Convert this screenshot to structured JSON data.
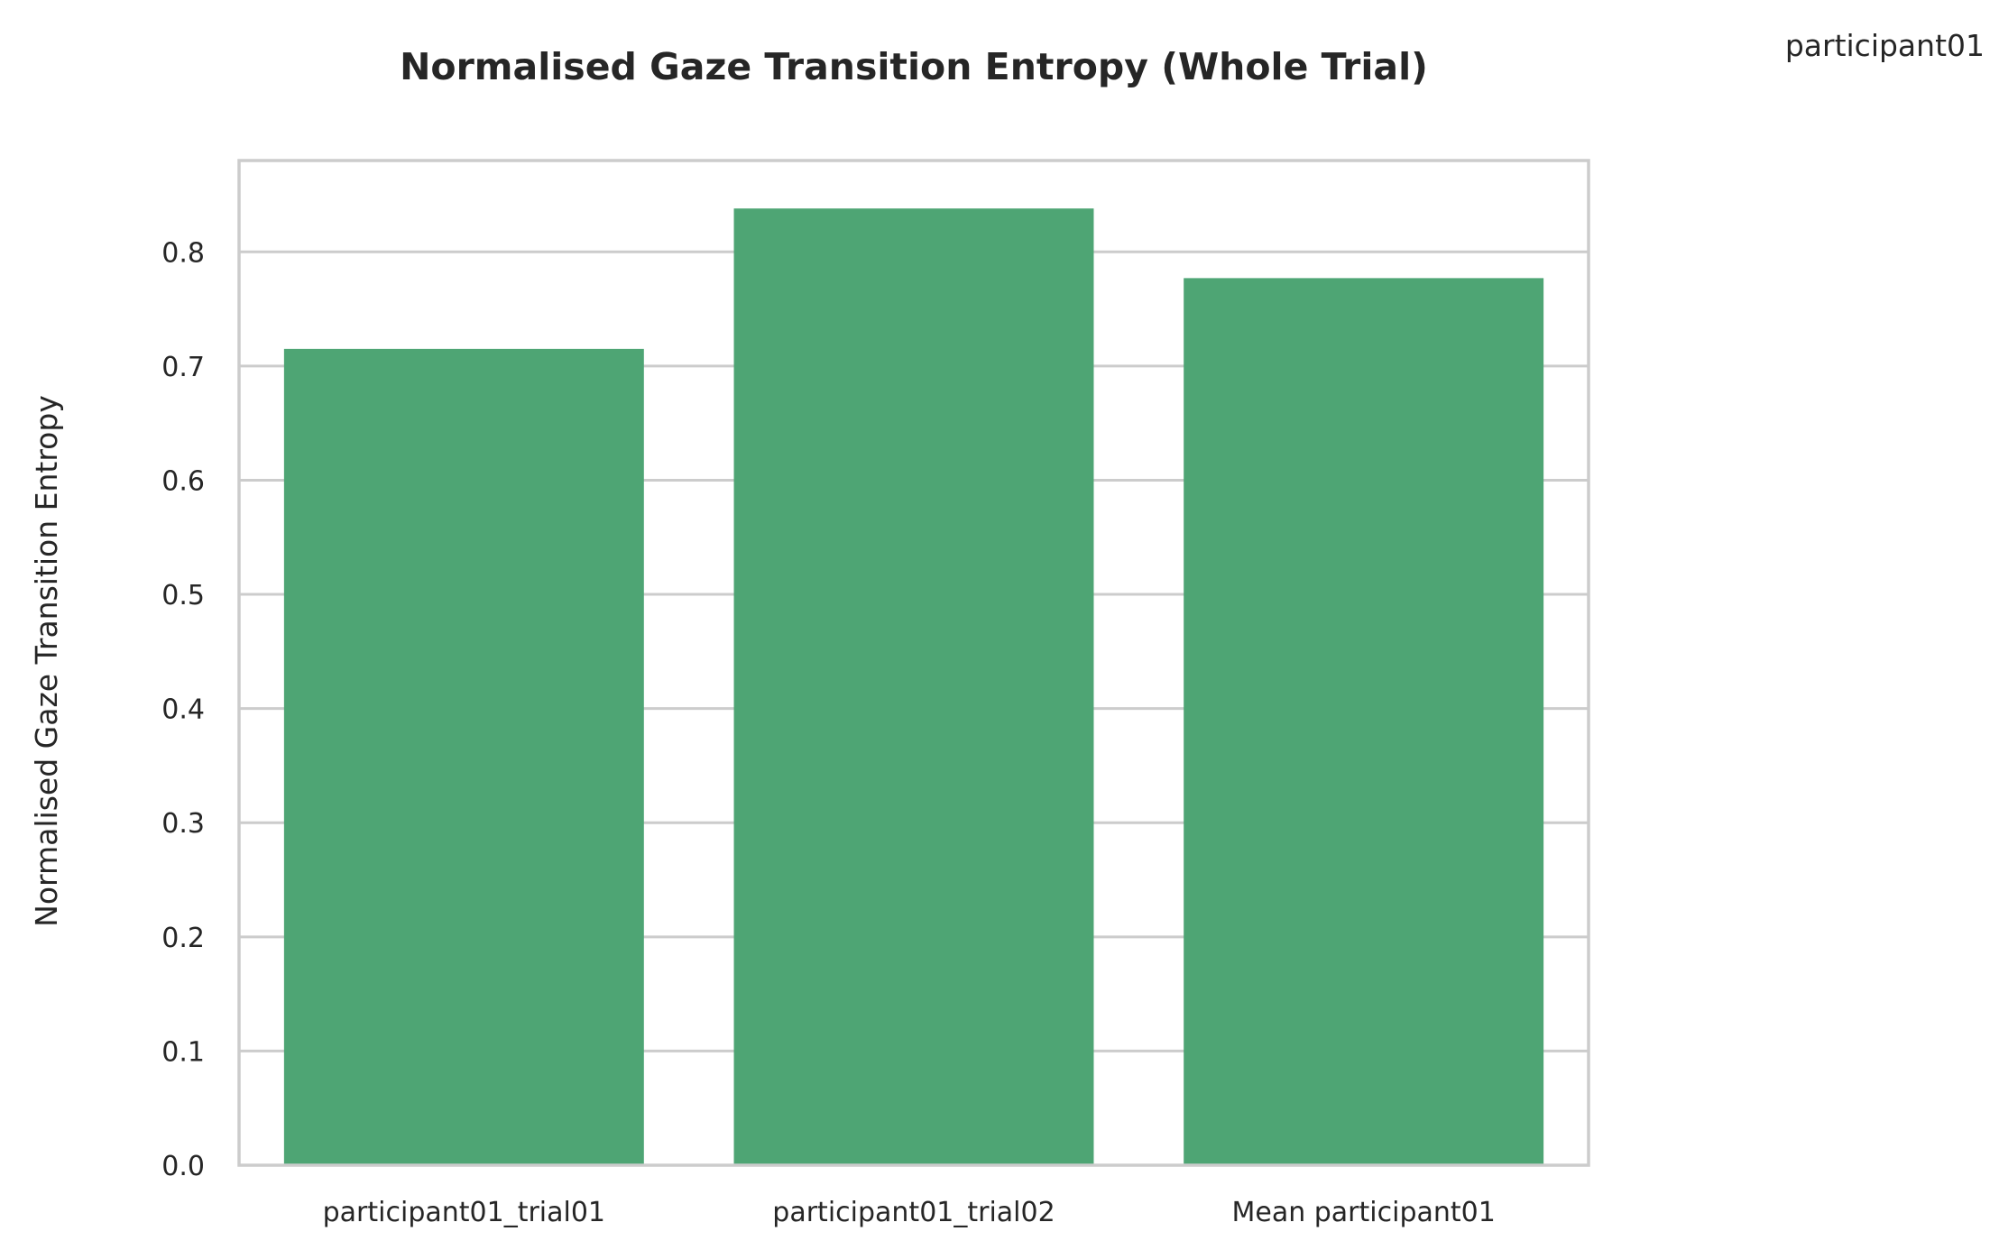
{
  "chart_data": {
    "type": "bar",
    "title": "Normalised Gaze Transition Entropy (Whole Trial)",
    "corner_label": "participant01",
    "xlabel": "",
    "ylabel": "Normalised Gaze Transition Entropy",
    "categories": [
      "participant01_trial01",
      "participant01_trial02",
      "Mean participant01"
    ],
    "values": [
      0.715,
      0.838,
      0.777
    ],
    "ylim": [
      0,
      0.88
    ],
    "yticks": [
      "0.0",
      "0.1",
      "0.2",
      "0.3",
      "0.4",
      "0.5",
      "0.6",
      "0.7",
      "0.8"
    ],
    "grid": true,
    "bar_color": "#4ea574",
    "grid_color": "#cccccc"
  }
}
